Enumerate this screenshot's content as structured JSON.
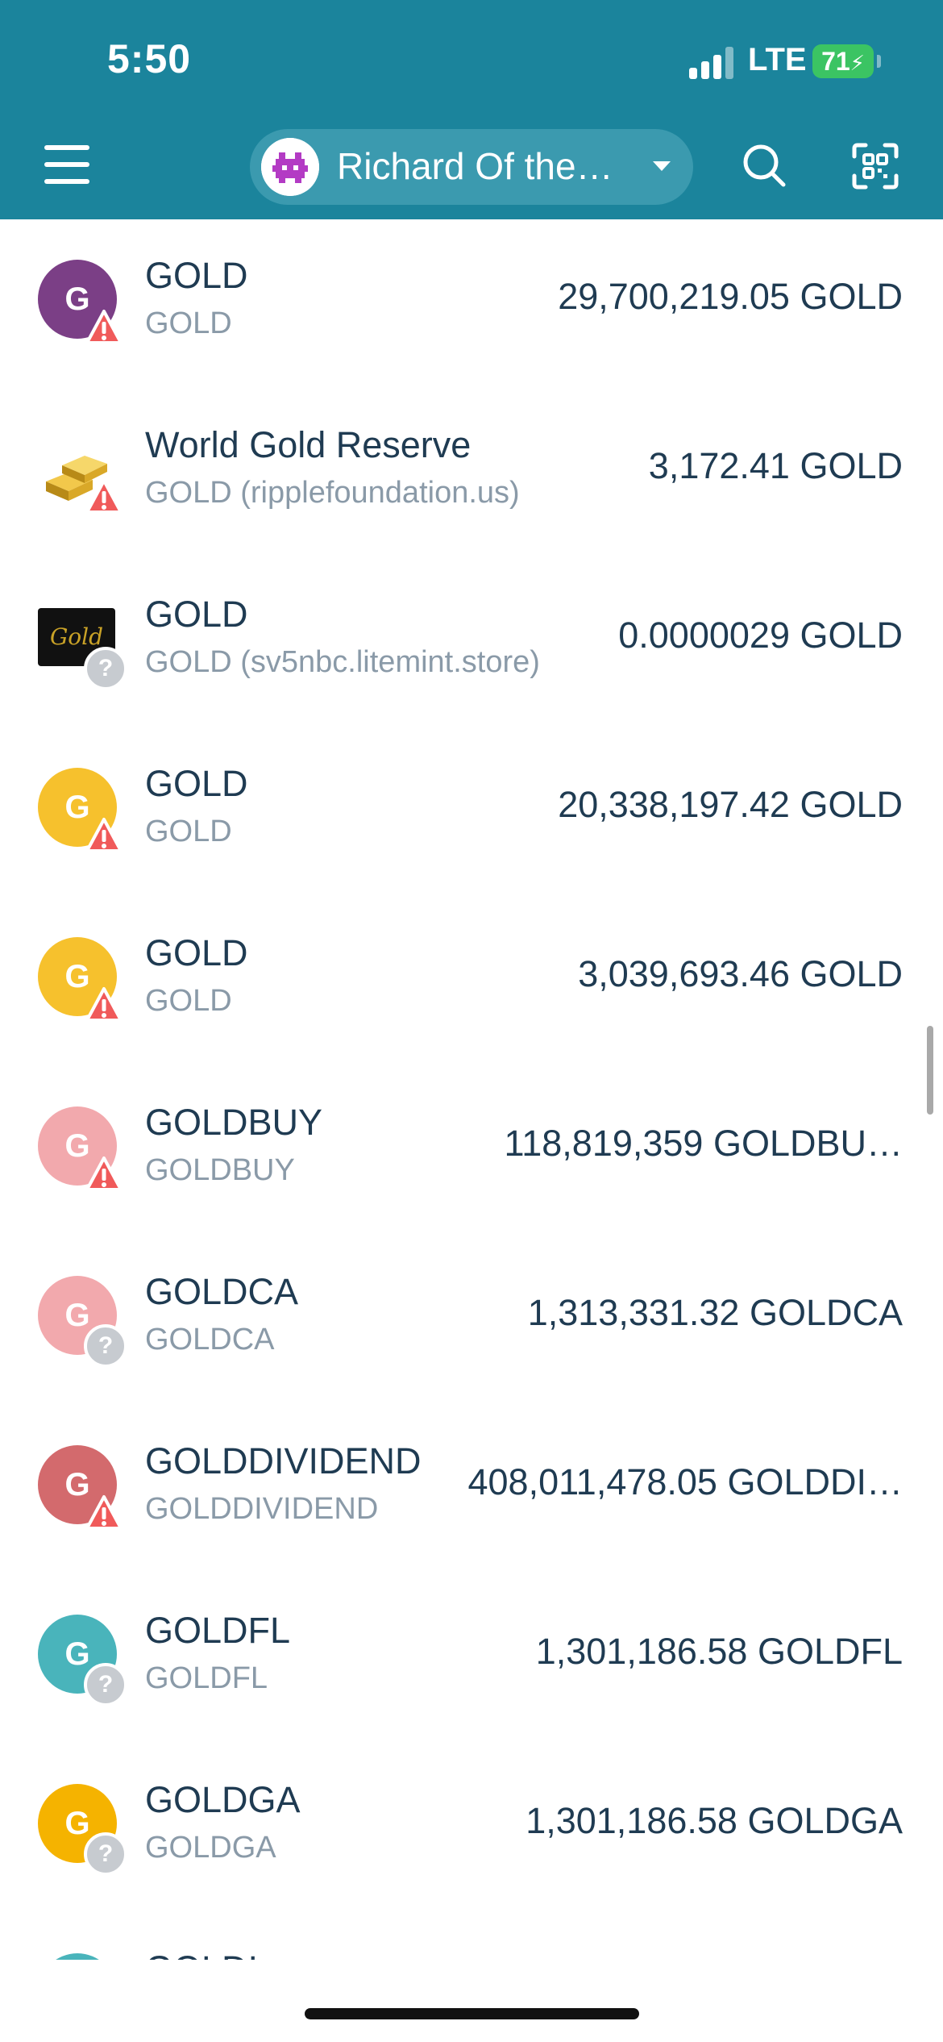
{
  "status_bar": {
    "time": "5:50",
    "network": "LTE",
    "battery": "71"
  },
  "header": {
    "account_name": "Richard Of the…",
    "menu_icon": "hamburger-menu-icon",
    "search_icon": "search-icon",
    "scan_icon": "qr-scan-icon"
  },
  "colors": {
    "header_bg": "#1b849c",
    "warning": "#f05a5a",
    "text_primary": "#1f3b52",
    "text_secondary": "#8a9aa8"
  },
  "tokens": [
    {
      "name": "GOLD",
      "issuer": "GOLD",
      "balance": "29,700,219.05 GOLD",
      "letter": "G",
      "color": "#7b3f86",
      "badge": "warning-icon"
    },
    {
      "name": "World Gold Reserve",
      "issuer": "GOLD (ripplefoundation.us)",
      "balance": "3,172.41 GOLD",
      "letter": "",
      "color": "#c9a227",
      "badge": "warning-icon"
    },
    {
      "name": "GOLD",
      "issuer": "GOLD (sv5nbc.litemint.store)",
      "balance": "0.0000029 GOLD",
      "letter": "Gold",
      "color": "#111111",
      "badge": "unknown-icon"
    },
    {
      "name": "GOLD",
      "issuer": "GOLD",
      "balance": "20,338,197.42 GOLD",
      "letter": "G",
      "color": "#f6c12d",
      "badge": "warning-icon"
    },
    {
      "name": "GOLD",
      "issuer": "GOLD",
      "balance": "3,039,693.46 GOLD",
      "letter": "G",
      "color": "#f6c12d",
      "badge": "warning-icon"
    },
    {
      "name": "GOLDBUY",
      "issuer": "GOLDBUY",
      "balance": "118,819,359 GOLDBU…",
      "letter": "G",
      "color": "#f2a9ad",
      "badge": "warning-icon"
    },
    {
      "name": "GOLDCA",
      "issuer": "GOLDCA",
      "balance": "1,313,331.32 GOLDCA",
      "letter": "G",
      "color": "#f2a9ad",
      "badge": "unknown-icon"
    },
    {
      "name": "GOLDDIVIDEND",
      "issuer": "GOLDDIVIDEND",
      "balance": "408,011,478.05 GOLDDI…",
      "letter": "G",
      "color": "#d36a6d",
      "badge": "warning-icon"
    },
    {
      "name": "GOLDFL",
      "issuer": "GOLDFL",
      "balance": "1,301,186.58 GOLDFL",
      "letter": "G",
      "color": "#49b4bb",
      "badge": "unknown-icon"
    },
    {
      "name": "GOLDGA",
      "issuer": "GOLDGA",
      "balance": "1,301,186.58 GOLDGA",
      "letter": "G",
      "color": "#f5b300",
      "badge": "unknown-icon"
    },
    {
      "name": "GOLDI…",
      "issuer": "",
      "balance": "",
      "letter": "",
      "color": "#49b4bb",
      "badge": ""
    }
  ]
}
